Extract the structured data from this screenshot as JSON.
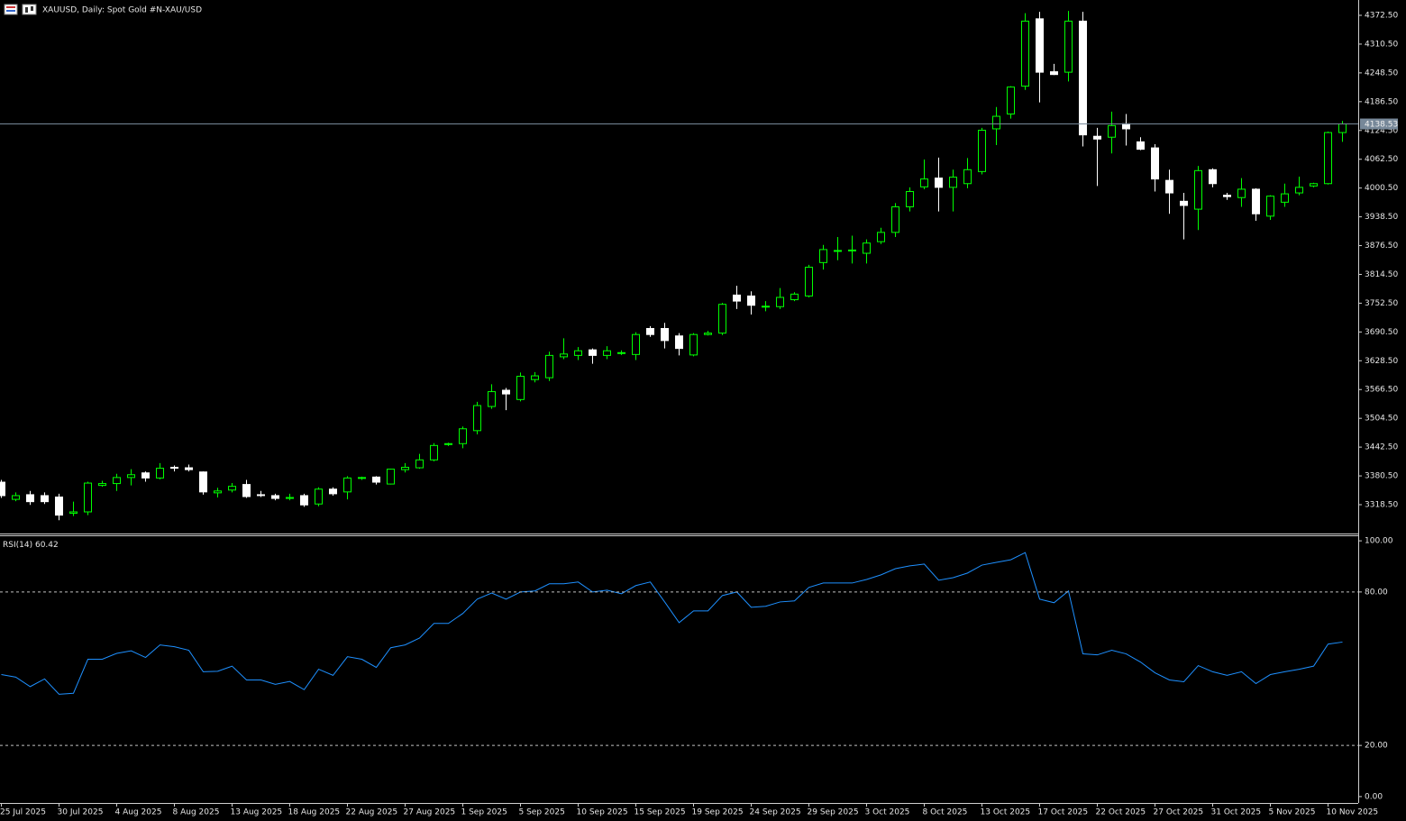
{
  "chart_data": [
    {
      "type": "candlestick",
      "title": "XAUUSD, Daily:  Spot Gold #N-XAU/USD",
      "categories": [
        "25 Jul 2025",
        null,
        null,
        null,
        "30 Jul 2025",
        null,
        null,
        null,
        "4 Aug 2025",
        null,
        null,
        null,
        "8 Aug 2025",
        null,
        null,
        null,
        "13 Aug 2025",
        null,
        null,
        null,
        "18 Aug 2025",
        null,
        null,
        null,
        "22 Aug 2025",
        null,
        null,
        null,
        "27 Aug 2025",
        null,
        null,
        null,
        "1 Sep 2025",
        null,
        null,
        null,
        "5 Sep 2025",
        null,
        null,
        null,
        "10 Sep 2025",
        null,
        null,
        null,
        "15 Sep 2025",
        null,
        null,
        null,
        "19 Sep 2025",
        null,
        null,
        null,
        "24 Sep 2025",
        null,
        null,
        null,
        "29 Sep 2025",
        null,
        null,
        null,
        "3 Oct 2025",
        null,
        null,
        null,
        "8 Oct 2025",
        null,
        null,
        null,
        "13 Oct 2025",
        null,
        null,
        null,
        "17 Oct 2025",
        null,
        null,
        null,
        "22 Oct 2025",
        null,
        null,
        null,
        "27 Oct 2025",
        null,
        null,
        null,
        "31 Oct 2025",
        null,
        null,
        null,
        "5 Nov 2025",
        null,
        null,
        null,
        "10 Nov 2025",
        null
      ],
      "open": [
        3367,
        3330,
        3340,
        3338,
        3335,
        3300,
        3303,
        3360,
        3364,
        3377,
        3387,
        3376,
        3399,
        3398,
        3389,
        3344,
        3350,
        3362,
        3340,
        3338,
        3332,
        3338,
        3320,
        3352,
        3346,
        3376,
        3378,
        3363,
        3394,
        3398,
        3415,
        3448,
        3450,
        3478,
        3530,
        3565,
        3545,
        3588,
        3592,
        3637,
        3640,
        3652,
        3640,
        3645,
        3642,
        3698,
        3698,
        3682,
        3641,
        3685,
        3688,
        3770,
        3768,
        3745,
        3745,
        3760,
        3768,
        3840,
        3865,
        3866,
        3860,
        3885,
        3905,
        3960,
        4003,
        4022,
        4002,
        4010,
        4036,
        4128,
        4160,
        4220,
        4365,
        4251,
        4250,
        4360,
        4112,
        4110,
        4139,
        4100,
        4087,
        4017,
        3972,
        3955,
        4040,
        3985,
        3980,
        3998,
        3940,
        3970,
        3990,
        4005,
        4010,
        4120
      ],
      "high": [
        3372,
        3345,
        3348,
        3345,
        3342,
        3325,
        3368,
        3370,
        3385,
        3395,
        3390,
        3408,
        3403,
        3405,
        3390,
        3355,
        3365,
        3372,
        3348,
        3342,
        3342,
        3342,
        3356,
        3356,
        3380,
        3379,
        3380,
        3396,
        3408,
        3428,
        3451,
        3452,
        3487,
        3540,
        3578,
        3570,
        3603,
        3604,
        3648,
        3677,
        3658,
        3655,
        3660,
        3651,
        3690,
        3703,
        3710,
        3688,
        3688,
        3693,
        3753,
        3790,
        3778,
        3757,
        3785,
        3776,
        3835,
        3878,
        3895,
        3898,
        3890,
        3915,
        3968,
        4002,
        4062,
        4066,
        4040,
        4065,
        4130,
        4175,
        4220,
        4377,
        4380,
        4268,
        4382,
        4380,
        4130,
        4165,
        4160,
        4110,
        4095,
        4040,
        3990,
        4048,
        4043,
        3990,
        4022,
        4000,
        3985,
        4010,
        4025,
        4012,
        4122,
        4145
      ],
      "low": [
        3333,
        3326,
        3318,
        3320,
        3285,
        3294,
        3296,
        3357,
        3348,
        3360,
        3368,
        3373,
        3390,
        3390,
        3340,
        3334,
        3345,
        3333,
        3335,
        3328,
        3328,
        3314,
        3315,
        3338,
        3330,
        3372,
        3362,
        3362,
        3388,
        3396,
        3412,
        3445,
        3440,
        3470,
        3525,
        3522,
        3541,
        3582,
        3585,
        3632,
        3630,
        3622,
        3632,
        3641,
        3630,
        3680,
        3655,
        3640,
        3638,
        3683,
        3684,
        3740,
        3728,
        3735,
        3740,
        3757,
        3765,
        3825,
        3845,
        3838,
        3838,
        3880,
        3895,
        3950,
        3998,
        3950,
        3950,
        4000,
        4030,
        4093,
        4150,
        4212,
        4185,
        4244,
        4230,
        4090,
        4005,
        4075,
        4092,
        4082,
        3993,
        3945,
        3890,
        3910,
        4002,
        3975,
        3960,
        3930,
        3932,
        3960,
        3985,
        4002,
        4008,
        4100
      ],
      "close": [
        3338,
        3338,
        3325,
        3325,
        3296,
        3303,
        3365,
        3364,
        3377,
        3383,
        3376,
        3397,
        3397,
        3394,
        3346,
        3348,
        3358,
        3336,
        3339,
        3332,
        3334,
        3318,
        3352,
        3342,
        3376,
        3377,
        3367,
        3395,
        3399,
        3415,
        3446,
        3450,
        3482,
        3532,
        3562,
        3557,
        3595,
        3596,
        3640,
        3643,
        3650,
        3640,
        3650,
        3646,
        3685,
        3685,
        3672,
        3655,
        3685,
        3688,
        3750,
        3757,
        3748,
        3746,
        3765,
        3772,
        3830,
        3868,
        3866,
        3867,
        3882,
        3905,
        3960,
        3993,
        4020,
        4002,
        4024,
        4040,
        4125,
        4155,
        4218,
        4360,
        4250,
        4245,
        4360,
        4115,
        4106,
        4135,
        4128,
        4084,
        4020,
        3990,
        3963,
        4038,
        4010,
        3982,
        3998,
        3945,
        3983,
        3988,
        4002,
        4010,
        4120,
        4138.53
      ],
      "up_color": "#00ff00",
      "down_color": "#ffffff",
      "price_line_color": "#778899",
      "ylim": [
        3256.4,
        4405.5
      ],
      "yticks": [
        {
          "value": 4372.5,
          "label": "4372.50"
        },
        {
          "value": 4310.5,
          "label": "4310.50"
        },
        {
          "value": 4248.5,
          "label": "4248.50"
        },
        {
          "value": 4186.5,
          "label": "4186.50"
        },
        {
          "value": 4124.5,
          "label": "4124.50"
        },
        {
          "value": 4062.5,
          "label": "4062.50"
        },
        {
          "value": 4000.5,
          "label": "4000.50"
        },
        {
          "value": 3938.5,
          "label": "3938.50"
        },
        {
          "value": 3876.5,
          "label": "3876.50"
        },
        {
          "value": 3814.5,
          "label": "3814.50"
        },
        {
          "value": 3752.5,
          "label": "3752.50"
        },
        {
          "value": 3690.5,
          "label": "3690.50"
        },
        {
          "value": 3628.5,
          "label": "3628.50"
        },
        {
          "value": 3566.5,
          "label": "3566.50"
        },
        {
          "value": 3504.5,
          "label": "3504.50"
        },
        {
          "value": 3442.5,
          "label": "3442.50"
        },
        {
          "value": 3380.5,
          "label": "3380.50"
        },
        {
          "value": 3318.5,
          "label": "3318.50"
        }
      ]
    },
    {
      "type": "line",
      "title": "RSI(14)",
      "values": [
        47.7,
        46.7,
        43,
        46,
        40,
        40.4,
        53.7,
        53.7,
        56,
        57,
        54.4,
        59.3,
        58.6,
        57.2,
        48.8,
        49,
        51,
        45.6,
        45.6,
        43.9,
        45,
        41.8,
        49.8,
        47.4,
        54.7,
        53.7,
        50.5,
        58.2,
        59.3,
        62,
        67.7,
        67.7,
        71.6,
        77.2,
        79.6,
        77.2,
        80,
        80.4,
        83.2,
        83.2,
        83.9,
        80,
        80.7,
        79.3,
        82.5,
        83.9,
        76.1,
        68,
        72.6,
        72.6,
        78.6,
        80,
        74,
        74.4,
        76.1,
        76.5,
        81.8,
        83.5,
        83.5,
        83.5,
        84.9,
        86.7,
        89.1,
        90.2,
        90.9,
        84.6,
        85.6,
        87.4,
        90.5,
        91.6,
        92.6,
        95.4,
        77.2,
        75.8,
        80.4,
        55.8,
        55.4,
        57.2,
        55.8,
        52.6,
        48.4,
        45.6,
        44.9,
        51.2,
        48.8,
        47.4,
        48.8,
        44.2,
        47.7,
        48.8,
        49.8,
        51,
        59.6,
        60.42
      ],
      "color": "#1e90ff",
      "ylim": [
        -2.5,
        101.8
      ],
      "yticks": [
        {
          "value": 100,
          "label": "100.00"
        },
        {
          "value": 80,
          "label": "80.00"
        },
        {
          "value": 20,
          "label": "20.00"
        },
        {
          "value": 0,
          "label": "0.00"
        }
      ]
    }
  ]
}
